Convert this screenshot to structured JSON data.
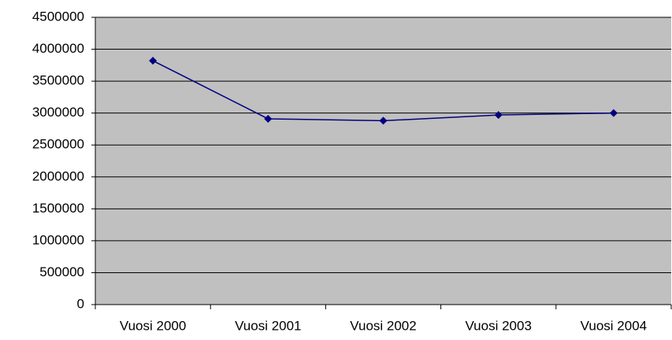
{
  "chart_data": {
    "type": "line",
    "categories": [
      "Vuosi 2000",
      "Vuosi 2001",
      "Vuosi 2002",
      "Vuosi 2003",
      "Vuosi 2004"
    ],
    "series": [
      {
        "color": "#000080",
        "values": [
          3820000,
          2910000,
          2880000,
          2970000,
          3000000
        ]
      }
    ],
    "ylim": [
      0,
      4500000
    ],
    "yticks": [
      0,
      500000,
      1000000,
      1500000,
      2000000,
      2500000,
      3000000,
      3500000,
      4000000,
      4500000
    ],
    "grid": true,
    "plot_background": "#c0c0c0"
  }
}
